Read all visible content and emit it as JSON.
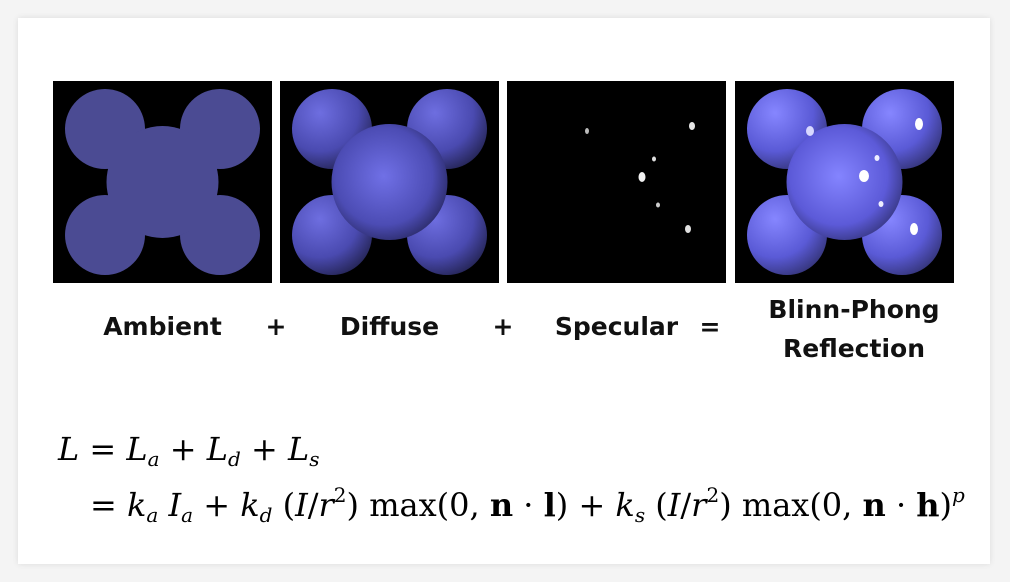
{
  "panels": [
    {
      "caption": "Ambient"
    },
    {
      "caption": "Diffuse"
    },
    {
      "caption": "Specular"
    },
    {
      "caption_line1": "Blinn-Phong",
      "caption_line2": "Reflection"
    }
  ],
  "operators": [
    "+",
    "+",
    "="
  ],
  "colors": {
    "shape_fill": "#4b4b93",
    "shape_highlight": "#7b7bf2",
    "background": "#000000"
  },
  "equation": {
    "line1": "L = La + Ld + Ls",
    "line2": "= ka Ia + kd (I/r2) max(0, n · l) + ks (I/r2) max(0, n · h)p"
  }
}
